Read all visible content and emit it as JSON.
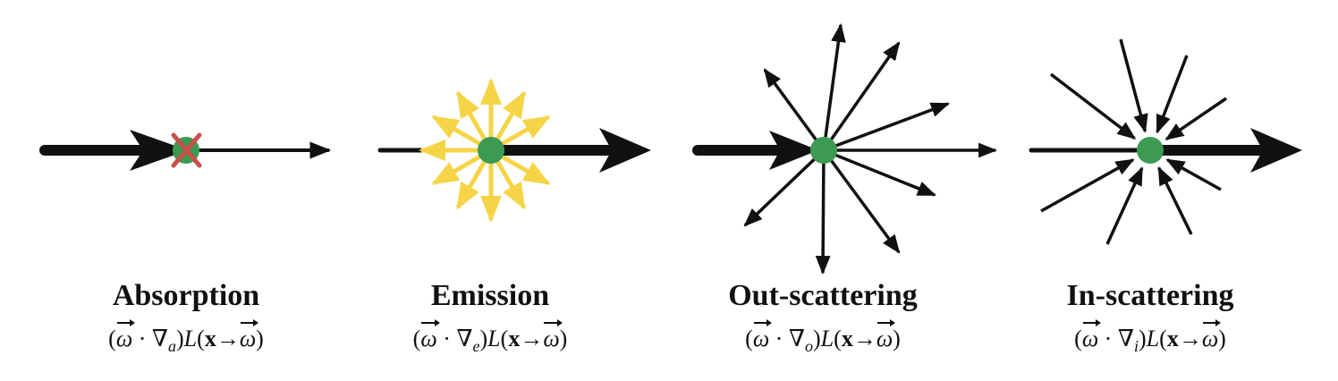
{
  "colors": {
    "arrow": "#111111",
    "node": "#3c9a52",
    "cross": "#c8504a",
    "emission": "#f5d547",
    "background": "#ffffff"
  },
  "panels": [
    {
      "id": "absorption",
      "title": "Absorption",
      "formula": {
        "open": "(",
        "omega": "ω",
        "dot": " · ∇",
        "sub": "a",
        "close": ")",
        "L": "L",
        "lparen": "(",
        "x": "x",
        "arrow": "→",
        "omega2": "ω",
        "rparen": ")"
      }
    },
    {
      "id": "emission",
      "title": "Emission",
      "formula": {
        "open": "(",
        "omega": "ω",
        "dot": " · ∇",
        "sub": "e",
        "close": ")",
        "L": "L",
        "lparen": "(",
        "x": "x",
        "arrow": "→",
        "omega2": "ω",
        "rparen": ")"
      }
    },
    {
      "id": "out-scattering",
      "title": "Out-scattering",
      "formula": {
        "open": "(",
        "omega": "ω",
        "dot": " · ∇",
        "sub": "o",
        "close": ")",
        "L": "L",
        "lparen": "(",
        "x": "x",
        "arrow": "→",
        "omega2": "ω",
        "rparen": ")"
      }
    },
    {
      "id": "in-scattering",
      "title": "In-scattering",
      "formula": {
        "open": "(",
        "omega": "ω",
        "dot": " · ∇",
        "sub": "i",
        "close": ")",
        "L": "L",
        "lparen": "(",
        "x": "x",
        "arrow": "→",
        "omega2": "ω",
        "rparen": ")"
      }
    }
  ]
}
